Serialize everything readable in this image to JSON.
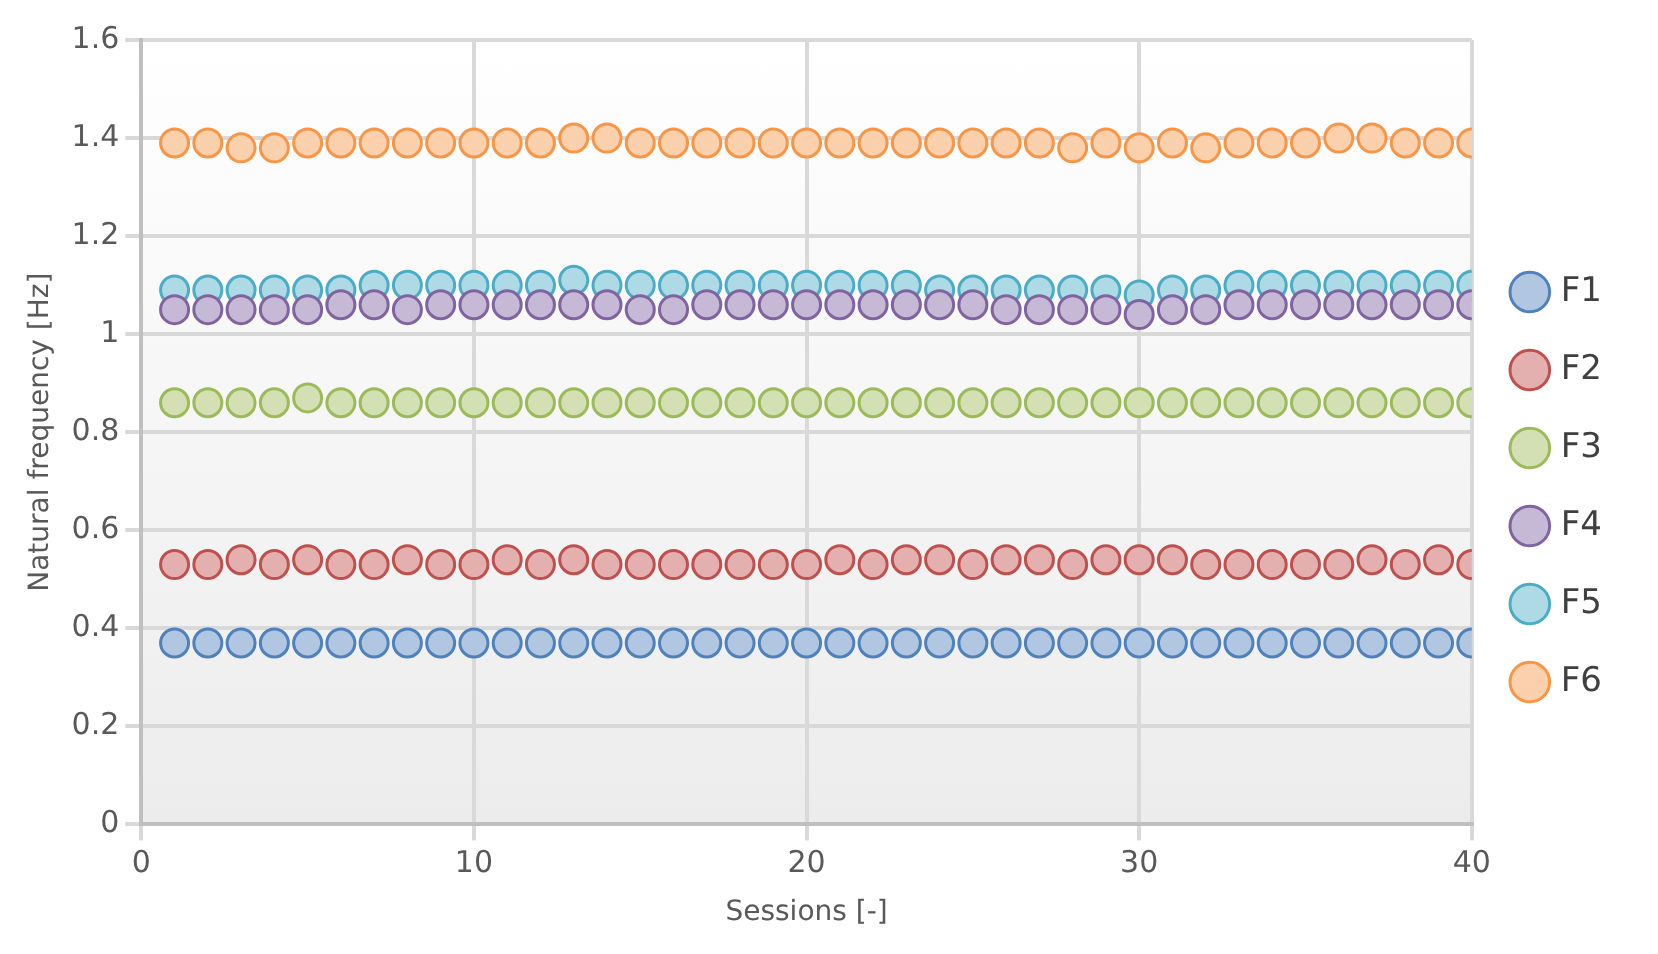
{
  "chart_data": {
    "type": "scatter",
    "xlabel": "Sessions [-]",
    "ylabel": "Natural frequency [Hz]",
    "x": [
      1,
      2,
      3,
      4,
      5,
      6,
      7,
      8,
      9,
      10,
      11,
      12,
      13,
      14,
      15,
      16,
      17,
      18,
      19,
      20,
      21,
      22,
      23,
      24,
      25,
      26,
      27,
      28,
      29,
      30,
      31,
      32,
      33,
      34,
      35,
      36,
      37,
      38,
      39,
      40
    ],
    "series": [
      {
        "name": "F1",
        "color": "#4f81bd",
        "values": [
          0.37,
          0.37,
          0.37,
          0.37,
          0.37,
          0.37,
          0.37,
          0.37,
          0.37,
          0.37,
          0.37,
          0.37,
          0.37,
          0.37,
          0.37,
          0.37,
          0.37,
          0.37,
          0.37,
          0.37,
          0.37,
          0.37,
          0.37,
          0.37,
          0.37,
          0.37,
          0.37,
          0.37,
          0.37,
          0.37,
          0.37,
          0.37,
          0.37,
          0.37,
          0.37,
          0.37,
          0.37,
          0.37,
          0.37,
          0.37
        ]
      },
      {
        "name": "F2",
        "color": "#c0504d",
        "values": [
          0.53,
          0.53,
          0.54,
          0.53,
          0.54,
          0.53,
          0.53,
          0.54,
          0.53,
          0.53,
          0.54,
          0.53,
          0.54,
          0.53,
          0.53,
          0.53,
          0.53,
          0.53,
          0.53,
          0.53,
          0.54,
          0.53,
          0.54,
          0.54,
          0.53,
          0.54,
          0.54,
          0.53,
          0.54,
          0.54,
          0.54,
          0.53,
          0.53,
          0.53,
          0.53,
          0.53,
          0.54,
          0.53,
          0.54,
          0.53
        ]
      },
      {
        "name": "F3",
        "color": "#9bbb59",
        "values": [
          0.86,
          0.86,
          0.86,
          0.86,
          0.87,
          0.86,
          0.86,
          0.86,
          0.86,
          0.86,
          0.86,
          0.86,
          0.86,
          0.86,
          0.86,
          0.86,
          0.86,
          0.86,
          0.86,
          0.86,
          0.86,
          0.86,
          0.86,
          0.86,
          0.86,
          0.86,
          0.86,
          0.86,
          0.86,
          0.86,
          0.86,
          0.86,
          0.86,
          0.86,
          0.86,
          0.86,
          0.86,
          0.86,
          0.86,
          0.86
        ]
      },
      {
        "name": "F4",
        "color": "#8064a2",
        "values": [
          1.05,
          1.05,
          1.05,
          1.05,
          1.05,
          1.06,
          1.06,
          1.05,
          1.06,
          1.06,
          1.06,
          1.06,
          1.06,
          1.06,
          1.05,
          1.05,
          1.06,
          1.06,
          1.06,
          1.06,
          1.06,
          1.06,
          1.06,
          1.06,
          1.06,
          1.05,
          1.05,
          1.05,
          1.05,
          1.04,
          1.05,
          1.05,
          1.06,
          1.06,
          1.06,
          1.06,
          1.06,
          1.06,
          1.06,
          1.06
        ]
      },
      {
        "name": "F5",
        "color": "#4bacc6",
        "values": [
          1.09,
          1.09,
          1.09,
          1.09,
          1.09,
          1.09,
          1.1,
          1.1,
          1.1,
          1.1,
          1.1,
          1.1,
          1.11,
          1.1,
          1.1,
          1.1,
          1.1,
          1.1,
          1.1,
          1.1,
          1.1,
          1.1,
          1.1,
          1.09,
          1.09,
          1.09,
          1.09,
          1.09,
          1.09,
          1.08,
          1.09,
          1.09,
          1.1,
          1.1,
          1.1,
          1.1,
          1.1,
          1.1,
          1.1,
          1.1
        ]
      },
      {
        "name": "F6",
        "color": "#f79646",
        "values": [
          1.39,
          1.39,
          1.38,
          1.38,
          1.39,
          1.39,
          1.39,
          1.39,
          1.39,
          1.39,
          1.39,
          1.39,
          1.4,
          1.4,
          1.39,
          1.39,
          1.39,
          1.39,
          1.39,
          1.39,
          1.39,
          1.39,
          1.39,
          1.39,
          1.39,
          1.39,
          1.39,
          1.38,
          1.39,
          1.38,
          1.39,
          1.38,
          1.39,
          1.39,
          1.39,
          1.4,
          1.4,
          1.39,
          1.39,
          1.39
        ]
      }
    ],
    "xlim": [
      0,
      40
    ],
    "xticks": [
      0,
      10,
      20,
      30,
      40
    ],
    "ylim": [
      0,
      1.6
    ],
    "yticks": [
      0,
      0.2,
      0.4,
      0.6,
      0.8,
      1,
      1.2,
      1.4,
      1.6
    ],
    "grid": true,
    "legend": "right",
    "marker": "circle"
  }
}
